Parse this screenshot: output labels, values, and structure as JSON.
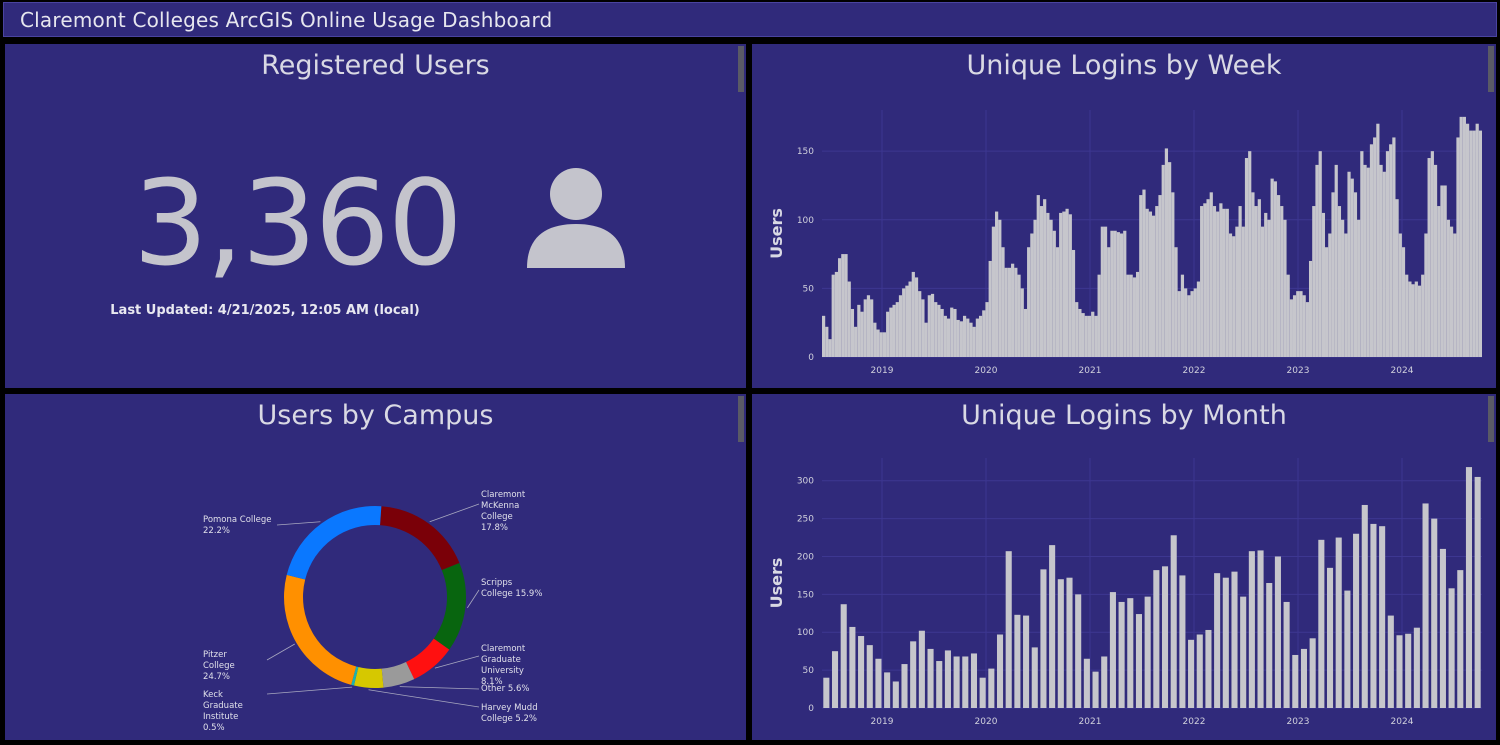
{
  "header": {
    "title": "Claremont Colleges ArcGIS Online Usage Dashboard"
  },
  "indicator": {
    "title": "Registered Users",
    "value": "3,360",
    "icon": "person-icon",
    "last_updated": "Last Updated: 4/21/2025, 12:05 AM (local)"
  },
  "colors": {
    "panel_bg": "#302a7b",
    "bar": "#c6c6cc",
    "text": "#d9d9e4"
  },
  "chart_data": [
    {
      "id": "weekly",
      "type": "bar",
      "title": "Unique Logins by Week",
      "xlabel": "",
      "ylabel": "Users",
      "ylim": [
        0,
        180
      ],
      "yticks": [
        0,
        50,
        100,
        150
      ],
      "xticks": [
        "2019",
        "2020",
        "2021",
        "2022",
        "2023",
        "2024"
      ],
      "grid": true,
      "values": [
        30,
        22,
        13,
        60,
        62,
        72,
        75,
        75,
        55,
        35,
        22,
        38,
        33,
        42,
        45,
        42,
        25,
        20,
        18,
        18,
        33,
        36,
        38,
        40,
        45,
        50,
        52,
        55,
        62,
        58,
        48,
        42,
        25,
        45,
        46,
        40,
        38,
        35,
        30,
        28,
        36,
        35,
        27,
        26,
        30,
        28,
        25,
        22,
        28,
        30,
        34,
        40,
        70,
        95,
        106,
        100,
        80,
        65,
        65,
        68,
        65,
        60,
        50,
        35,
        80,
        90,
        100,
        118,
        110,
        115,
        105,
        100,
        92,
        80,
        105,
        106,
        108,
        104,
        78,
        40,
        35,
        32,
        30,
        30,
        33,
        30,
        60,
        95,
        95,
        80,
        92,
        92,
        91,
        90,
        92,
        60,
        60,
        58,
        62,
        118,
        122,
        108,
        106,
        103,
        110,
        118,
        140,
        152,
        142,
        120,
        80,
        48,
        60,
        50,
        45,
        48,
        50,
        55,
        110,
        112,
        115,
        120,
        110,
        106,
        112,
        108,
        108,
        90,
        88,
        95,
        110,
        95,
        145,
        150,
        120,
        110,
        115,
        95,
        105,
        100,
        130,
        128,
        118,
        110,
        100,
        60,
        42,
        45,
        48,
        48,
        45,
        40,
        70,
        110,
        140,
        150,
        105,
        80,
        90,
        120,
        140,
        110,
        100,
        90,
        135,
        130,
        120,
        100,
        150,
        140,
        138,
        155,
        160,
        170,
        140,
        135,
        150,
        155,
        160,
        115,
        90,
        80,
        60,
        55,
        53,
        55,
        52,
        60,
        90,
        145,
        150,
        140,
        110,
        125,
        125,
        100,
        95,
        90,
        160,
        175,
        175,
        170,
        165,
        165,
        170,
        165
      ]
    },
    {
      "id": "monthly",
      "type": "bar",
      "title": "Unique Logins by Month",
      "xlabel": "",
      "ylabel": "Users",
      "ylim": [
        0,
        330
      ],
      "yticks": [
        0,
        50,
        100,
        150,
        200,
        250,
        300
      ],
      "xticks": [
        "2019",
        "2020",
        "2021",
        "2022",
        "2023",
        "2024"
      ],
      "grid": true,
      "values": [
        40,
        75,
        137,
        107,
        95,
        83,
        65,
        47,
        35,
        58,
        88,
        102,
        78,
        62,
        76,
        68,
        68,
        72,
        40,
        52,
        97,
        207,
        123,
        122,
        80,
        183,
        215,
        170,
        172,
        150,
        65,
        48,
        68,
        153,
        140,
        145,
        124,
        147,
        182,
        187,
        228,
        175,
        90,
        97,
        103,
        178,
        172,
        180,
        147,
        207,
        208,
        165,
        200,
        140,
        70,
        78,
        92,
        222,
        185,
        225,
        155,
        230,
        268,
        243,
        240,
        122,
        96,
        98,
        106,
        270,
        250,
        210,
        158,
        182,
        318,
        305
      ]
    },
    {
      "id": "campus",
      "type": "pie",
      "title": "Users by Campus",
      "donut": true,
      "slices": [
        {
          "label": "Claremont McKenna College",
          "value": 17.8,
          "color": "#7a0008",
          "text": "Claremont McKenna College 17.8%"
        },
        {
          "label": "Scripps College",
          "value": 15.9,
          "color": "#08650f",
          "text": "Scripps College 15.9%"
        },
        {
          "label": "Claremont Graduate University",
          "value": 8.1,
          "color": "#ff1010",
          "text": "Claremont Graduate University 8.1%"
        },
        {
          "label": "Other",
          "value": 5.6,
          "color": "#9a9a9a",
          "text": "Other 5.6%"
        },
        {
          "label": "Harvey Mudd College",
          "value": 5.2,
          "color": "#d6c800",
          "text": "Harvey Mudd College 5.2%"
        },
        {
          "label": "Keck Graduate Institute",
          "value": 0.5,
          "color": "#19b4b0",
          "text": "Keck Graduate Institute 0.5%"
        },
        {
          "label": "Pitzer College",
          "value": 24.7,
          "color": "#ff9000",
          "text": "Pitzer College 24.7%"
        },
        {
          "label": "Pomona College",
          "value": 22.2,
          "color": "#0a78ff",
          "text": "Pomona College 22.2%"
        }
      ]
    }
  ]
}
